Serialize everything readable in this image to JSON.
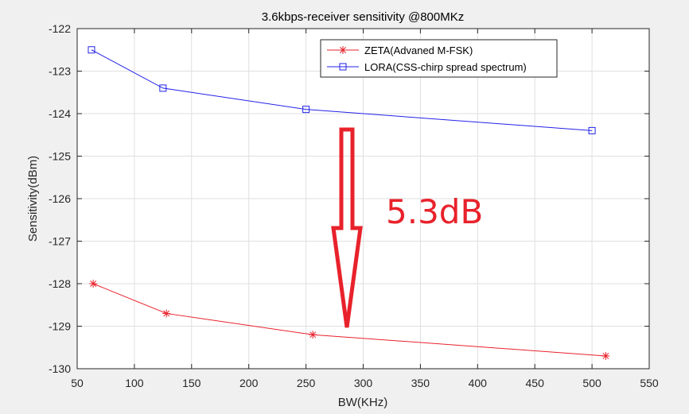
{
  "chart_data": {
    "type": "line",
    "title": "3.6kbps-receiver sensitivity @800MKz",
    "xlabel": "BW(KHz)",
    "ylabel": "Sensitivity(dBm)",
    "xlim": [
      50,
      550
    ],
    "ylim": [
      -130,
      -122
    ],
    "xticks": [
      "50",
      "100",
      "150",
      "200",
      "250",
      "300",
      "350",
      "400",
      "450",
      "500",
      "550"
    ],
    "yticks": [
      "-122",
      "-123",
      "-124",
      "-125",
      "-126",
      "-127",
      "-128",
      "-129",
      "-130"
    ],
    "grid": true,
    "legend_position": "top-right",
    "series": [
      {
        "name": "ZETA(Advaned M-FSK)",
        "color": "#e8222b",
        "marker": "asterisk",
        "x": [
          62.5,
          125,
          250,
          500
        ],
        "y": [
          -128.0,
          -128.7,
          -129.2,
          -129.7
        ],
        "x_plot": [
          64,
          128,
          256,
          512
        ]
      },
      {
        "name": "LORA(CSS-chirp spread spectrum)",
        "color": "#2222e8",
        "marker": "square",
        "x": [
          62.5,
          125,
          250,
          500
        ],
        "y": [
          -122.5,
          -123.4,
          -123.9,
          -124.4
        ]
      }
    ],
    "annotations": [
      {
        "text": "5.3dB",
        "color": "#e8222b",
        "type": "down-arrow"
      }
    ]
  }
}
